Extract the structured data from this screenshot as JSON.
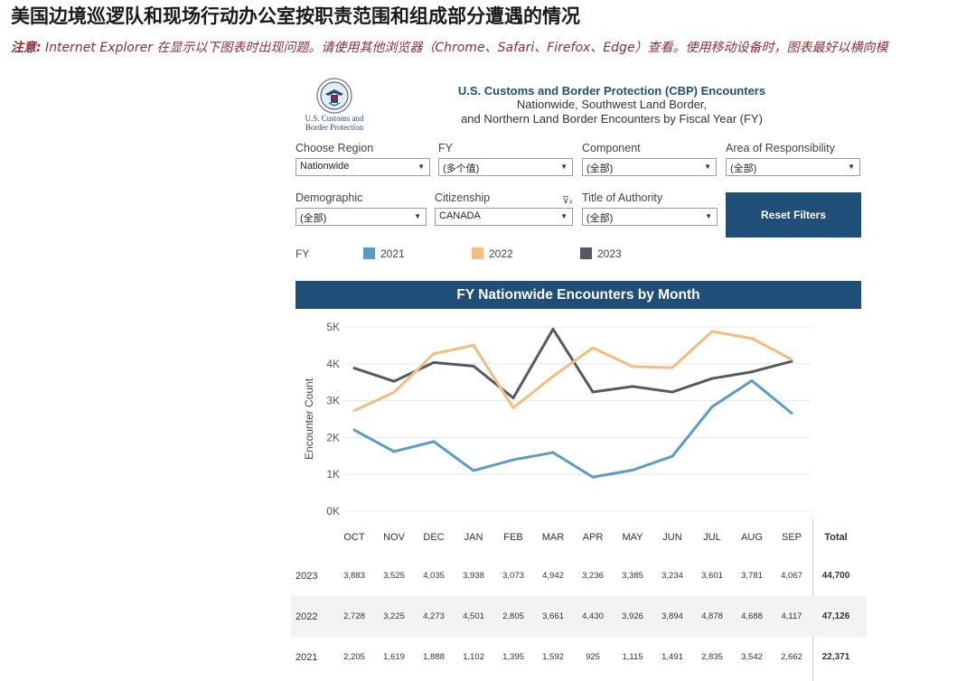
{
  "page": {
    "title": "美国边境巡逻队和现场行动办公室按职责范围和组成部分遭遇的情况",
    "notice_label": "注意:",
    "notice_text": " Internet Explorer 在显示以下图表时出现问题。请使用其他浏览器（Chrome、Safari、Firefox、Edge）查看。使用移动设备时，图表最好以横向模"
  },
  "logo": {
    "line1": "U.S. Customs and",
    "line2": "Border Protection"
  },
  "header": {
    "title": "U.S. Customs and Border Protection (CBP) Encounters",
    "subtitle1": "Nationwide, Southwest Land Border,",
    "subtitle2": "and Northern Land Border Encounters by Fiscal Year (FY)"
  },
  "filters": {
    "region": {
      "label": "Choose Region",
      "value": "Nationwide"
    },
    "fy": {
      "label": "FY",
      "value": "(多个值)"
    },
    "component": {
      "label": "Component",
      "value": "(全部)"
    },
    "aor": {
      "label": "Area of Responsibility",
      "value": "(全部)"
    },
    "demographic": {
      "label": "Demographic",
      "value": "(全部)"
    },
    "citizenship": {
      "label": "Citizenship",
      "value": "CANADA"
    },
    "authority": {
      "label": "Title of Authority",
      "value": "(全部)"
    },
    "reset_label": "Reset Filters"
  },
  "legend": {
    "label": "FY",
    "items": [
      {
        "name": "2021",
        "color": "#5b9bc4"
      },
      {
        "name": "2022",
        "color": "#f2bd80"
      },
      {
        "name": "2023",
        "color": "#555a62"
      }
    ]
  },
  "chart_data": {
    "type": "line",
    "title": "FY Nationwide Encounters by Month",
    "ylabel": "Encounter Count",
    "xlabel": "",
    "ylim": [
      0,
      5000
    ],
    "yticks": [
      "0K",
      "1K",
      "2K",
      "3K",
      "4K",
      "5K"
    ],
    "grid": true,
    "legend_position": "top",
    "categories": [
      "OCT",
      "NOV",
      "DEC",
      "JAN",
      "FEB",
      "MAR",
      "APR",
      "MAY",
      "JUN",
      "JUL",
      "AUG",
      "SEP"
    ],
    "series": [
      {
        "name": "2023",
        "color": "#555a62",
        "values": [
          3883,
          3525,
          4035,
          3938,
          3073,
          4942,
          3236,
          3385,
          3234,
          3601,
          3781,
          4067
        ]
      },
      {
        "name": "2022",
        "color": "#f2bd80",
        "values": [
          2728,
          3225,
          4273,
          4501,
          2805,
          3661,
          4430,
          3926,
          3894,
          4878,
          4688,
          4117
        ]
      },
      {
        "name": "2021",
        "color": "#5b9bc4",
        "values": [
          2205,
          1619,
          1888,
          1102,
          1395,
          1592,
          925,
          1115,
          1491,
          2835,
          3542,
          2662
        ]
      }
    ]
  },
  "table": {
    "total_header": "Total",
    "rows": [
      {
        "fy": "2023",
        "cells": [
          "3,883",
          "3,525",
          "4,035",
          "3,938",
          "3,073",
          "4,942",
          "3,236",
          "3,385",
          "3,234",
          "3,601",
          "3,781",
          "4,067"
        ],
        "total": "44,700"
      },
      {
        "fy": "2022",
        "cells": [
          "2,728",
          "3,225",
          "4,273",
          "4,501",
          "2,805",
          "3,661",
          "4,430",
          "3,926",
          "3,894",
          "4,878",
          "4,688",
          "4,117"
        ],
        "total": "47,126"
      },
      {
        "fy": "2021",
        "cells": [
          "2,205",
          "1,619",
          "1,888",
          "1,102",
          "1,395",
          "1,592",
          "925",
          "1,115",
          "1,491",
          "2,835",
          "3,542",
          "2,662"
        ],
        "total": "22,371"
      }
    ]
  }
}
